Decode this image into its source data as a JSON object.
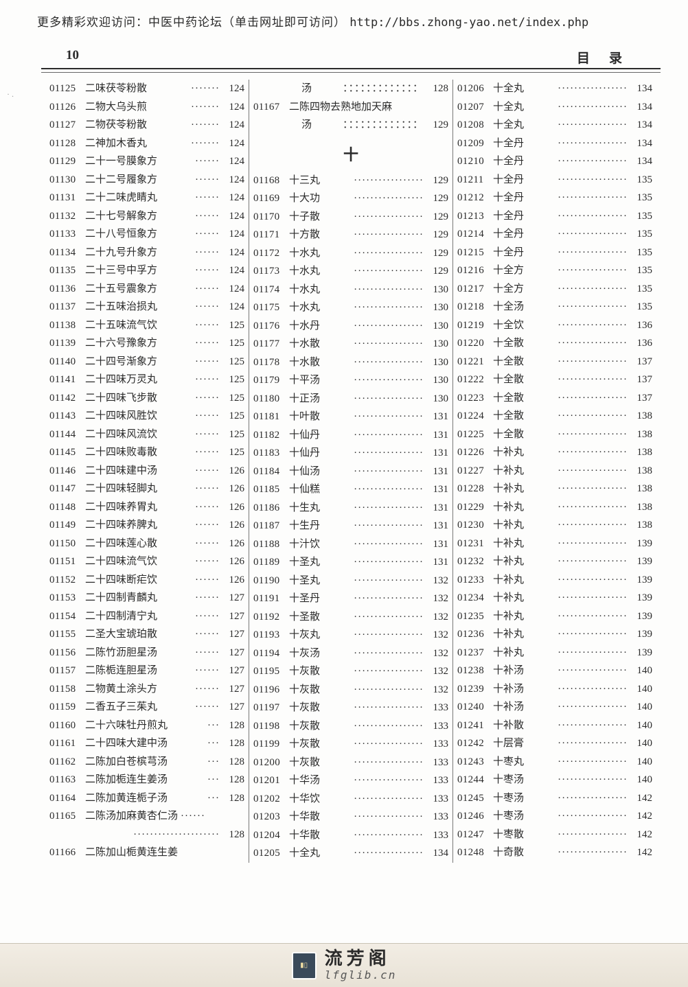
{
  "banner": {
    "prefix": "更多精彩欢迎访问：中医中药论坛（单击网址即可访问）",
    "url": "http://bbs.zhong-yao.net/index.php"
  },
  "header": {
    "page_no": "10",
    "right_label": "目录"
  },
  "section_divider": "十",
  "footer": {
    "cn": "流芳阁",
    "en": "lfglib.cn",
    "logo_text": "▮▯"
  },
  "col1": [
    {
      "id": "01125",
      "name": "二味茯苓粉散",
      "dots": "·······",
      "page": "124"
    },
    {
      "id": "01126",
      "name": "二物大乌头煎",
      "dots": "·······",
      "page": "124"
    },
    {
      "id": "01127",
      "name": "二物茯苓粉散",
      "dots": "·······",
      "page": "124"
    },
    {
      "id": "01128",
      "name": "二神加木香丸",
      "dots": "·······",
      "page": "124"
    },
    {
      "id": "01129",
      "name": "二十一号膜象方",
      "dots": "······",
      "page": "124"
    },
    {
      "id": "01130",
      "name": "二十二号履象方",
      "dots": "······",
      "page": "124"
    },
    {
      "id": "01131",
      "name": "二十二味虎睛丸",
      "dots": "······",
      "page": "124"
    },
    {
      "id": "01132",
      "name": "二十七号解象方",
      "dots": "······",
      "page": "124"
    },
    {
      "id": "01133",
      "name": "二十八号恒象方",
      "dots": "······",
      "page": "124"
    },
    {
      "id": "01134",
      "name": "二十九号升象方",
      "dots": "······",
      "page": "124"
    },
    {
      "id": "01135",
      "name": "二十三号中孚方",
      "dots": "······",
      "page": "124"
    },
    {
      "id": "01136",
      "name": "二十五号震象方",
      "dots": "······",
      "page": "124"
    },
    {
      "id": "01137",
      "name": "二十五味治损丸",
      "dots": "······",
      "page": "124"
    },
    {
      "id": "01138",
      "name": "二十五味流气饮",
      "dots": "······",
      "page": "125"
    },
    {
      "id": "01139",
      "name": "二十六号豫象方",
      "dots": "······",
      "page": "125"
    },
    {
      "id": "01140",
      "name": "二十四号渐象方",
      "dots": "······",
      "page": "125"
    },
    {
      "id": "01141",
      "name": "二十四味万灵丸",
      "dots": "······",
      "page": "125"
    },
    {
      "id": "01142",
      "name": "二十四味飞步散",
      "dots": "······",
      "page": "125"
    },
    {
      "id": "01143",
      "name": "二十四味风胜饮",
      "dots": "······",
      "page": "125"
    },
    {
      "id": "01144",
      "name": "二十四味风流饮",
      "dots": "······",
      "page": "125"
    },
    {
      "id": "01145",
      "name": "二十四味败毒散",
      "dots": "······",
      "page": "125"
    },
    {
      "id": "01146",
      "name": "二十四味建中汤",
      "dots": "······",
      "page": "126"
    },
    {
      "id": "01147",
      "name": "二十四味轻脚丸",
      "dots": "······",
      "page": "126"
    },
    {
      "id": "01148",
      "name": "二十四味养胃丸",
      "dots": "······",
      "page": "126"
    },
    {
      "id": "01149",
      "name": "二十四味养脾丸",
      "dots": "······",
      "page": "126"
    },
    {
      "id": "01150",
      "name": "二十四味莲心散",
      "dots": "······",
      "page": "126"
    },
    {
      "id": "01151",
      "name": "二十四味流气饮",
      "dots": "······",
      "page": "126"
    },
    {
      "id": "01152",
      "name": "二十四味断疟饮",
      "dots": "······",
      "page": "126"
    },
    {
      "id": "01153",
      "name": "二十四制青麟丸",
      "dots": "······",
      "page": "127"
    },
    {
      "id": "01154",
      "name": "二十四制清宁丸",
      "dots": "······",
      "page": "127"
    },
    {
      "id": "01155",
      "name": "二圣大宝琥珀散",
      "dots": "······",
      "page": "127"
    },
    {
      "id": "01156",
      "name": "二陈竹沥胆星汤",
      "dots": "······",
      "page": "127"
    },
    {
      "id": "01157",
      "name": "二陈栀连胆星汤",
      "dots": "······",
      "page": "127"
    },
    {
      "id": "01158",
      "name": "二物黄土涂头方",
      "dots": "······",
      "page": "127"
    },
    {
      "id": "01159",
      "name": "二香五子三茱丸",
      "dots": "······",
      "page": "127"
    },
    {
      "id": "01160",
      "name": "二十六味牡丹煎丸",
      "dots": "···",
      "page": "128"
    },
    {
      "id": "01161",
      "name": "二十四味大建中汤",
      "dots": "···",
      "page": "128"
    },
    {
      "id": "01162",
      "name": "二陈加白苍槟芎汤",
      "dots": "···",
      "page": "128"
    },
    {
      "id": "01163",
      "name": "二陈加栀连生姜汤",
      "dots": "···",
      "page": "128"
    },
    {
      "id": "01164",
      "name": "二陈加黄连栀子汤",
      "dots": "···",
      "page": "128"
    },
    {
      "id": "01165",
      "name": "二陈汤加麻黄杏仁汤",
      "dots": "······",
      "page": "",
      "wrap": true
    },
    {
      "id": "",
      "name": "",
      "dots": "·····················",
      "page": "128",
      "cont": true,
      "hidepad": true
    },
    {
      "id": "01166",
      "name": "二陈加山栀黄连生姜",
      "dots": "",
      "page": "",
      "wrap": true
    }
  ],
  "col2_pre": [
    {
      "id": "",
      "name": "汤",
      "dots": "：：：：：：：：：：：：：",
      "page": "128",
      "cont": true
    },
    {
      "id": "01167",
      "name": "二陈四物去熟地加天麻",
      "dots": "",
      "page": "",
      "wrap": true
    },
    {
      "id": "",
      "name": "汤",
      "dots": "：：：：：：：：：：：：：",
      "page": "129",
      "cont": true
    }
  ],
  "col2": [
    {
      "id": "01168",
      "name": "十三丸",
      "dots": "·················",
      "page": "129"
    },
    {
      "id": "01169",
      "name": "十大功",
      "dots": "·················",
      "page": "129"
    },
    {
      "id": "01170",
      "name": "十子散",
      "dots": "·················",
      "page": "129"
    },
    {
      "id": "01171",
      "name": "十方散",
      "dots": "·················",
      "page": "129"
    },
    {
      "id": "01172",
      "name": "十水丸",
      "dots": "·················",
      "page": "129"
    },
    {
      "id": "01173",
      "name": "十水丸",
      "dots": "·················",
      "page": "129"
    },
    {
      "id": "01174",
      "name": "十水丸",
      "dots": "·················",
      "page": "130"
    },
    {
      "id": "01175",
      "name": "十水丸",
      "dots": "·················",
      "page": "130"
    },
    {
      "id": "01176",
      "name": "十水丹",
      "dots": "·················",
      "page": "130"
    },
    {
      "id": "01177",
      "name": "十水散",
      "dots": "·················",
      "page": "130"
    },
    {
      "id": "01178",
      "name": "十水散",
      "dots": "·················",
      "page": "130"
    },
    {
      "id": "01179",
      "name": "十平汤",
      "dots": "·················",
      "page": "130"
    },
    {
      "id": "01180",
      "name": "十正汤",
      "dots": "·················",
      "page": "130"
    },
    {
      "id": "01181",
      "name": "十叶散",
      "dots": "·················",
      "page": "131"
    },
    {
      "id": "01182",
      "name": "十仙丹",
      "dots": "·················",
      "page": "131"
    },
    {
      "id": "01183",
      "name": "十仙丹",
      "dots": "·················",
      "page": "131"
    },
    {
      "id": "01184",
      "name": "十仙汤",
      "dots": "·················",
      "page": "131"
    },
    {
      "id": "01185",
      "name": "十仙糕",
      "dots": "·················",
      "page": "131"
    },
    {
      "id": "01186",
      "name": "十生丸",
      "dots": "·················",
      "page": "131"
    },
    {
      "id": "01187",
      "name": "十生丹",
      "dots": "·················",
      "page": "131"
    },
    {
      "id": "01188",
      "name": "十汁饮",
      "dots": "·················",
      "page": "131"
    },
    {
      "id": "01189",
      "name": "十圣丸",
      "dots": "·················",
      "page": "131"
    },
    {
      "id": "01190",
      "name": "十圣丸",
      "dots": "·················",
      "page": "132"
    },
    {
      "id": "01191",
      "name": "十圣丹",
      "dots": "·················",
      "page": "132"
    },
    {
      "id": "01192",
      "name": "十圣散",
      "dots": "·················",
      "page": "132"
    },
    {
      "id": "01193",
      "name": "十灰丸",
      "dots": "·················",
      "page": "132"
    },
    {
      "id": "01194",
      "name": "十灰汤",
      "dots": "·················",
      "page": "132"
    },
    {
      "id": "01195",
      "name": "十灰散",
      "dots": "·················",
      "page": "132"
    },
    {
      "id": "01196",
      "name": "十灰散",
      "dots": "·················",
      "page": "132"
    },
    {
      "id": "01197",
      "name": "十灰散",
      "dots": "·················",
      "page": "133"
    },
    {
      "id": "01198",
      "name": "十灰散",
      "dots": "·················",
      "page": "133"
    },
    {
      "id": "01199",
      "name": "十灰散",
      "dots": "·················",
      "page": "133"
    },
    {
      "id": "01200",
      "name": "十灰散",
      "dots": "·················",
      "page": "133"
    },
    {
      "id": "01201",
      "name": "十华汤",
      "dots": "·················",
      "page": "133"
    },
    {
      "id": "01202",
      "name": "十华饮",
      "dots": "·················",
      "page": "133"
    },
    {
      "id": "01203",
      "name": "十华散",
      "dots": "·················",
      "page": "133"
    },
    {
      "id": "01204",
      "name": "十华散",
      "dots": "·················",
      "page": "133"
    },
    {
      "id": "01205",
      "name": "十全丸",
      "dots": "·················",
      "page": "134"
    }
  ],
  "col3": [
    {
      "id": "01206",
      "name": "十全丸",
      "dots": "·················",
      "page": "134"
    },
    {
      "id": "01207",
      "name": "十全丸",
      "dots": "·················",
      "page": "134"
    },
    {
      "id": "01208",
      "name": "十全丸",
      "dots": "·················",
      "page": "134"
    },
    {
      "id": "01209",
      "name": "十全丹",
      "dots": "·················",
      "page": "134"
    },
    {
      "id": "01210",
      "name": "十全丹",
      "dots": "·················",
      "page": "134"
    },
    {
      "id": "01211",
      "name": "十全丹",
      "dots": "·················",
      "page": "135"
    },
    {
      "id": "01212",
      "name": "十全丹",
      "dots": "·················",
      "page": "135"
    },
    {
      "id": "01213",
      "name": "十全丹",
      "dots": "·················",
      "page": "135"
    },
    {
      "id": "01214",
      "name": "十全丹",
      "dots": "·················",
      "page": "135"
    },
    {
      "id": "01215",
      "name": "十全丹",
      "dots": "·················",
      "page": "135"
    },
    {
      "id": "01216",
      "name": "十全方",
      "dots": "·················",
      "page": "135"
    },
    {
      "id": "01217",
      "name": "十全方",
      "dots": "·················",
      "page": "135"
    },
    {
      "id": "01218",
      "name": "十全汤",
      "dots": "·················",
      "page": "135"
    },
    {
      "id": "01219",
      "name": "十全饮",
      "dots": "·················",
      "page": "136"
    },
    {
      "id": "01220",
      "name": "十全散",
      "dots": "·················",
      "page": "136"
    },
    {
      "id": "01221",
      "name": "十全散",
      "dots": "·················",
      "page": "137"
    },
    {
      "id": "01222",
      "name": "十全散",
      "dots": "·················",
      "page": "137"
    },
    {
      "id": "01223",
      "name": "十全散",
      "dots": "·················",
      "page": "137"
    },
    {
      "id": "01224",
      "name": "十全散",
      "dots": "·················",
      "page": "138"
    },
    {
      "id": "01225",
      "name": "十全散",
      "dots": "·················",
      "page": "138"
    },
    {
      "id": "01226",
      "name": "十补丸",
      "dots": "·················",
      "page": "138"
    },
    {
      "id": "01227",
      "name": "十补丸",
      "dots": "·················",
      "page": "138"
    },
    {
      "id": "01228",
      "name": "十补丸",
      "dots": "·················",
      "page": "138"
    },
    {
      "id": "01229",
      "name": "十补丸",
      "dots": "·················",
      "page": "138"
    },
    {
      "id": "01230",
      "name": "十补丸",
      "dots": "·················",
      "page": "138"
    },
    {
      "id": "01231",
      "name": "十补丸",
      "dots": "·················",
      "page": "139"
    },
    {
      "id": "01232",
      "name": "十补丸",
      "dots": "·················",
      "page": "139"
    },
    {
      "id": "01233",
      "name": "十补丸",
      "dots": "·················",
      "page": "139"
    },
    {
      "id": "01234",
      "name": "十补丸",
      "dots": "·················",
      "page": "139"
    },
    {
      "id": "01235",
      "name": "十补丸",
      "dots": "·················",
      "page": "139"
    },
    {
      "id": "01236",
      "name": "十补丸",
      "dots": "·················",
      "page": "139"
    },
    {
      "id": "01237",
      "name": "十补丸",
      "dots": "·················",
      "page": "139"
    },
    {
      "id": "01238",
      "name": "十补汤",
      "dots": "·················",
      "page": "140"
    },
    {
      "id": "01239",
      "name": "十补汤",
      "dots": "·················",
      "page": "140"
    },
    {
      "id": "01240",
      "name": "十补汤",
      "dots": "·················",
      "page": "140"
    },
    {
      "id": "01241",
      "name": "十补散",
      "dots": "·················",
      "page": "140"
    },
    {
      "id": "01242",
      "name": "十层膏",
      "dots": "·················",
      "page": "140"
    },
    {
      "id": "01243",
      "name": "十枣丸",
      "dots": "·················",
      "page": "140"
    },
    {
      "id": "01244",
      "name": "十枣汤",
      "dots": "·················",
      "page": "140"
    },
    {
      "id": "01245",
      "name": "十枣汤",
      "dots": "·················",
      "page": "142"
    },
    {
      "id": "01246",
      "name": "十枣汤",
      "dots": "·················",
      "page": "142"
    },
    {
      "id": "01247",
      "name": "十枣散",
      "dots": "·················",
      "page": "142"
    },
    {
      "id": "01248",
      "name": "十奇散",
      "dots": "·················",
      "page": "142"
    }
  ]
}
